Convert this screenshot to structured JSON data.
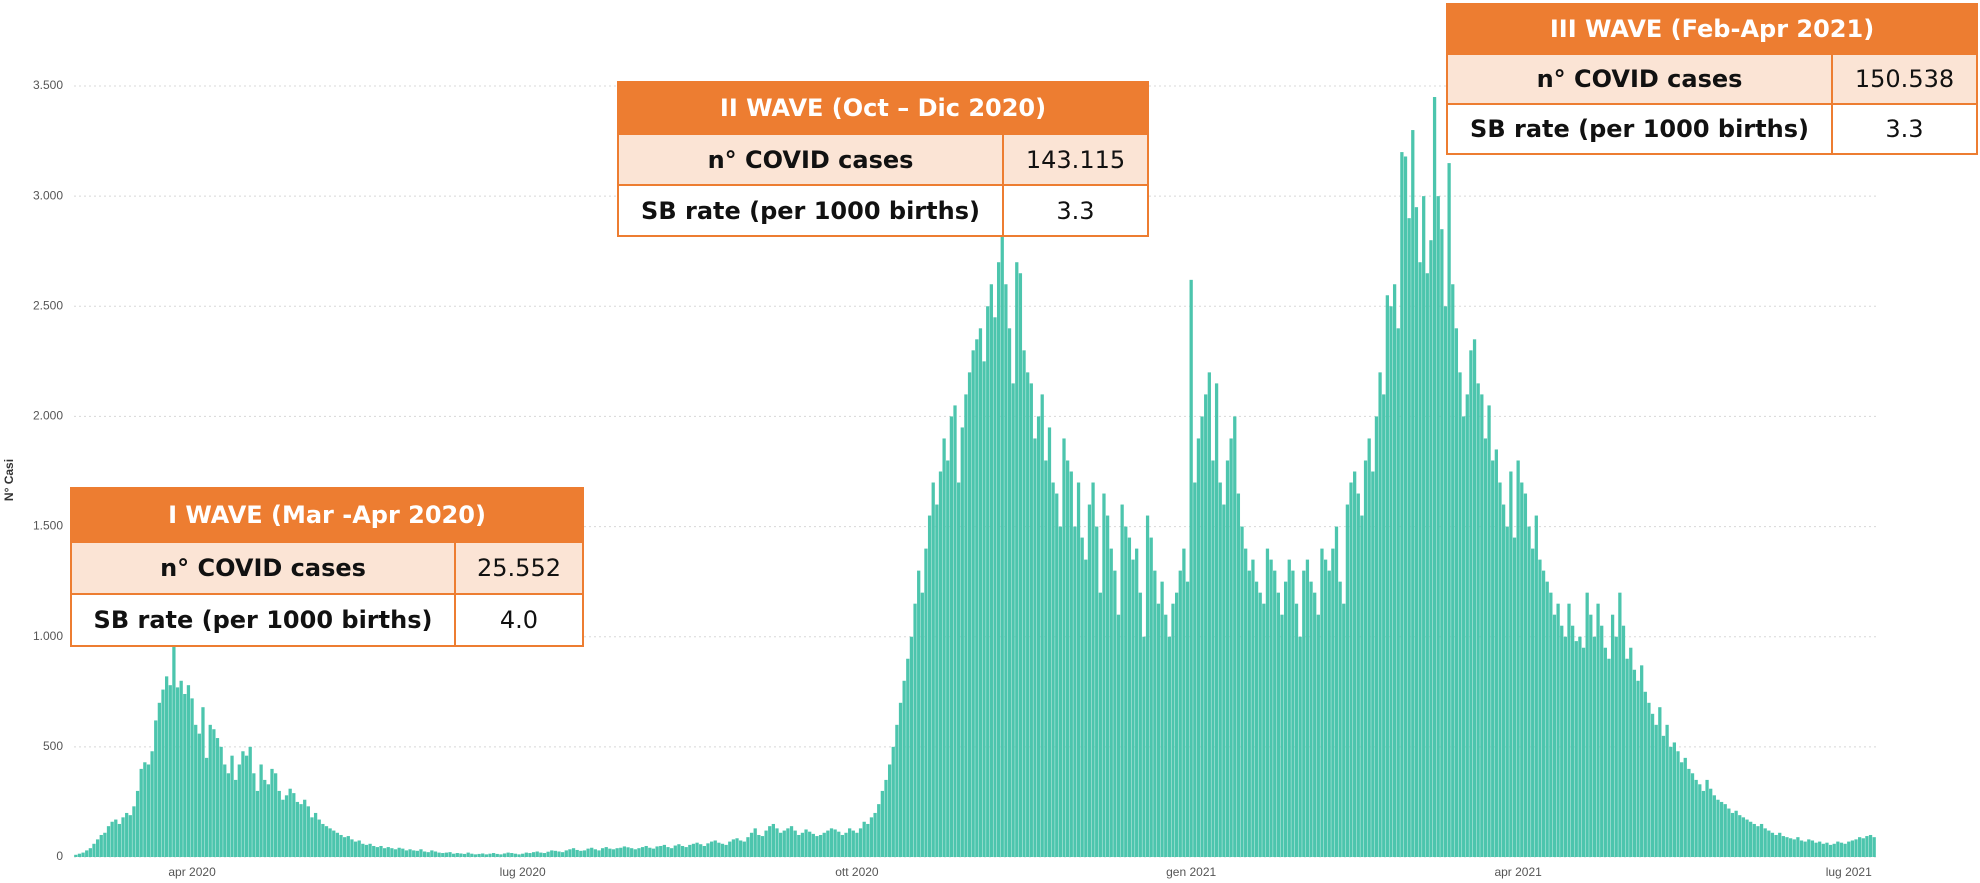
{
  "chart_data": {
    "type": "bar",
    "y_label": "N° Casi",
    "color": "#4cc5ad",
    "grid": true,
    "ylim": [
      0,
      3500
    ],
    "yticks": [
      0,
      500,
      {
        "value": 1000,
        "label": "1.000"
      },
      {
        "value": 1500,
        "label": "1.500"
      },
      {
        "value": 2000,
        "label": "2.000"
      },
      {
        "value": 2500,
        "label": "2.500"
      },
      {
        "value": 3000,
        "label": "3.000"
      },
      {
        "value": 3500,
        "label": "3.500"
      }
    ],
    "categories": [
      null,
      null,
      null,
      null,
      null,
      null,
      null,
      null,
      null,
      null,
      null,
      null,
      null,
      null,
      null,
      null,
      null,
      null,
      null,
      null,
      null,
      null,
      null,
      null,
      null,
      null,
      null,
      null,
      null,
      null,
      null,
      null,
      "apr 2020",
      null,
      null,
      null,
      null,
      null,
      null,
      null,
      null,
      null,
      null,
      null,
      null,
      null,
      null,
      null,
      null,
      null,
      null,
      null,
      null,
      null,
      null,
      null,
      null,
      null,
      null,
      null,
      null,
      null,
      null,
      null,
      null,
      null,
      null,
      null,
      null,
      null,
      null,
      null,
      null,
      null,
      null,
      null,
      null,
      null,
      null,
      null,
      null,
      null,
      null,
      null,
      null,
      null,
      null,
      null,
      null,
      null,
      null,
      null,
      null,
      null,
      null,
      null,
      null,
      null,
      null,
      null,
      null,
      null,
      null,
      null,
      null,
      null,
      null,
      null,
      null,
      null,
      null,
      null,
      null,
      null,
      null,
      null,
      null,
      null,
      null,
      null,
      null,
      null,
      null,
      "lug 2020",
      null,
      null,
      null,
      null,
      null,
      null,
      null,
      null,
      null,
      null,
      null,
      null,
      null,
      null,
      null,
      null,
      null,
      null,
      null,
      null,
      null,
      null,
      null,
      null,
      null,
      null,
      null,
      null,
      null,
      null,
      null,
      null,
      null,
      null,
      null,
      null,
      null,
      null,
      null,
      null,
      null,
      null,
      null,
      null,
      null,
      null,
      null,
      null,
      null,
      null,
      null,
      null,
      null,
      null,
      null,
      null,
      null,
      null,
      null,
      null,
      null,
      null,
      null,
      null,
      null,
      null,
      null,
      null,
      null,
      null,
      null,
      null,
      null,
      null,
      null,
      null,
      null,
      null,
      null,
      null,
      null,
      null,
      null,
      null,
      null,
      null,
      null,
      null,
      null,
      null,
      null,
      "ott 2020",
      null,
      null,
      null,
      null,
      null,
      null,
      null,
      null,
      null,
      null,
      null,
      null,
      null,
      null,
      null,
      null,
      null,
      null,
      null,
      null,
      null,
      null,
      null,
      null,
      null,
      null,
      null,
      null,
      null,
      null,
      null,
      null,
      null,
      null,
      null,
      null,
      null,
      null,
      null,
      null,
      null,
      null,
      null,
      null,
      null,
      null,
      null,
      null,
      null,
      null,
      null,
      null,
      null,
      null,
      null,
      null,
      null,
      null,
      null,
      null,
      null,
      null,
      null,
      null,
      null,
      null,
      null,
      null,
      null,
      null,
      null,
      null,
      null,
      null,
      null,
      null,
      null,
      null,
      null,
      null,
      null,
      null,
      null,
      null,
      null,
      null,
      null,
      null,
      null,
      null,
      null,
      "gen 2021",
      null,
      null,
      null,
      null,
      null,
      null,
      null,
      null,
      null,
      null,
      null,
      null,
      null,
      null,
      null,
      null,
      null,
      null,
      null,
      null,
      null,
      null,
      null,
      null,
      null,
      null,
      null,
      null,
      null,
      null,
      null,
      null,
      null,
      null,
      null,
      null,
      null,
      null,
      null,
      null,
      null,
      null,
      null,
      null,
      null,
      null,
      null,
      null,
      null,
      null,
      null,
      null,
      null,
      null,
      null,
      null,
      null,
      null,
      null,
      null,
      null,
      null,
      null,
      null,
      null,
      null,
      null,
      null,
      null,
      null,
      null,
      null,
      null,
      null,
      null,
      null,
      null,
      null,
      null,
      null,
      null,
      null,
      null,
      null,
      null,
      null,
      null,
      null,
      null,
      "apr 2021",
      null,
      null,
      null,
      null,
      null,
      null,
      null,
      null,
      null,
      null,
      null,
      null,
      null,
      null,
      null,
      null,
      null,
      null,
      null,
      null,
      null,
      null,
      null,
      null,
      null,
      null,
      null,
      null,
      null,
      null,
      null,
      null,
      null,
      null,
      null,
      null,
      null,
      null,
      null,
      null,
      null,
      null,
      null,
      null,
      null,
      null,
      null,
      null,
      null,
      null,
      null,
      null,
      null,
      null,
      null,
      null,
      null,
      null,
      null,
      null,
      null,
      null,
      null,
      null,
      null,
      null,
      null,
      null,
      null,
      null,
      null,
      null,
      null,
      null,
      null,
      null,
      null,
      null,
      null,
      null,
      null,
      null,
      null,
      null,
      null,
      null,
      null,
      null,
      null,
      null,
      "lug 2021",
      null,
      null,
      null,
      null,
      null,
      null,
      null
    ],
    "values": [
      10,
      15,
      20,
      30,
      40,
      60,
      80,
      100,
      110,
      140,
      160,
      170,
      150,
      180,
      200,
      190,
      230,
      300,
      400,
      430,
      420,
      480,
      620,
      700,
      760,
      820,
      780,
      970,
      770,
      800,
      740,
      780,
      720,
      600,
      560,
      680,
      450,
      600,
      580,
      540,
      500,
      420,
      380,
      460,
      350,
      420,
      480,
      460,
      500,
      380,
      300,
      420,
      350,
      330,
      400,
      380,
      300,
      260,
      280,
      310,
      290,
      250,
      240,
      260,
      230,
      180,
      200,
      170,
      150,
      140,
      130,
      120,
      110,
      100,
      90,
      95,
      80,
      70,
      75,
      60,
      55,
      60,
      50,
      45,
      50,
      40,
      45,
      40,
      35,
      42,
      38,
      30,
      35,
      30,
      28,
      35,
      25,
      22,
      30,
      25,
      20,
      18,
      20,
      22,
      15,
      18,
      16,
      14,
      20,
      15,
      12,
      14,
      16,
      12,
      15,
      18,
      14,
      12,
      16,
      20,
      18,
      15,
      12,
      15,
      20,
      18,
      22,
      25,
      20,
      18,
      24,
      30,
      28,
      25,
      22,
      30,
      35,
      40,
      32,
      28,
      30,
      38,
      42,
      35,
      30,
      40,
      45,
      38,
      35,
      40,
      42,
      48,
      44,
      40,
      35,
      40,
      45,
      50,
      42,
      38,
      48,
      50,
      55,
      45,
      40,
      52,
      58,
      50,
      45,
      55,
      60,
      65,
      58,
      50,
      62,
      70,
      75,
      65,
      60,
      55,
      70,
      80,
      85,
      75,
      70,
      90,
      110,
      130,
      100,
      95,
      120,
      140,
      150,
      130,
      110,
      120,
      130,
      140,
      120,
      100,
      110,
      125,
      115,
      105,
      95,
      100,
      110,
      120,
      130,
      125,
      115,
      100,
      110,
      130,
      120,
      110,
      130,
      160,
      150,
      180,
      200,
      240,
      300,
      350,
      420,
      500,
      600,
      700,
      800,
      900,
      1000,
      1150,
      1300,
      1200,
      1400,
      1550,
      1700,
      1600,
      1750,
      1900,
      1800,
      2000,
      2050,
      1700,
      1950,
      2100,
      2200,
      2300,
      2350,
      2400,
      2250,
      2500,
      2600,
      2450,
      2700,
      2820,
      2600,
      2400,
      2150,
      2700,
      2650,
      2300,
      2200,
      2150,
      1900,
      2000,
      2100,
      1800,
      1950,
      1700,
      1650,
      1500,
      1900,
      1800,
      1750,
      1500,
      1700,
      1450,
      1350,
      1600,
      1700,
      1500,
      1200,
      1650,
      1550,
      1400,
      1300,
      1100,
      1600,
      1500,
      1450,
      1350,
      1400,
      1200,
      1000,
      1550,
      1450,
      1300,
      1150,
      1250,
      1100,
      1000,
      1150,
      1200,
      1300,
      1400,
      1250,
      2620,
      1700,
      1900,
      2000,
      2100,
      2200,
      1800,
      2150,
      1700,
      1600,
      1800,
      1900,
      2000,
      1650,
      1500,
      1400,
      1300,
      1350,
      1250,
      1200,
      1150,
      1400,
      1350,
      1300,
      1200,
      1100,
      1250,
      1350,
      1300,
      1150,
      1000,
      1300,
      1350,
      1250,
      1200,
      1100,
      1400,
      1350,
      1300,
      1400,
      1500,
      1250,
      1150,
      1600,
      1700,
      1750,
      1650,
      1550,
      1800,
      1900,
      1750,
      2000,
      2200,
      2100,
      2550,
      2500,
      2600,
      2400,
      3200,
      3180,
      2900,
      3300,
      2950,
      2700,
      3000,
      2650,
      2800,
      3450,
      3000,
      2850,
      2500,
      3150,
      2600,
      2400,
      2200,
      2000,
      2100,
      2300,
      2350,
      2150,
      2100,
      1900,
      2050,
      1800,
      1850,
      1700,
      1600,
      1500,
      1750,
      1450,
      1800,
      1700,
      1650,
      1500,
      1400,
      1550,
      1350,
      1300,
      1250,
      1200,
      1100,
      1150,
      1050,
      1000,
      1150,
      1050,
      980,
      1000,
      950,
      1200,
      1100,
      1000,
      1150,
      1050,
      950,
      900,
      1100,
      1000,
      1200,
      1050,
      900,
      950,
      850,
      800,
      870,
      750,
      700,
      650,
      600,
      680,
      550,
      600,
      500,
      520,
      480,
      430,
      450,
      400,
      380,
      350,
      330,
      300,
      350,
      310,
      280,
      260,
      250,
      240,
      220,
      200,
      210,
      190,
      180,
      170,
      160,
      150,
      140,
      150,
      130,
      120,
      110,
      100,
      110,
      95,
      90,
      85,
      80,
      90,
      75,
      70,
      80,
      75,
      65,
      70,
      60,
      65,
      55,
      60,
      70,
      65,
      60,
      70,
      75,
      80,
      90,
      85,
      95,
      100,
      90
    ]
  },
  "annotations": [
    {
      "title": "I WAVE (Mar -Apr 2020)",
      "rows": [
        [
          "n° COVID cases",
          "25.552"
        ],
        [
          "SB rate (per 1000 births)",
          "4.0"
        ]
      ]
    },
    {
      "title": "II WAVE (Oct – Dic 2020)",
      "rows": [
        [
          "n° COVID cases",
          "143.115"
        ],
        [
          "SB rate (per 1000 births)",
          "3.3"
        ]
      ]
    },
    {
      "title": "III WAVE (Feb-Apr 2021)",
      "rows": [
        [
          "n° COVID cases",
          "150.538"
        ],
        [
          "SB rate (per 1000 births)",
          "3.3"
        ]
      ]
    }
  ]
}
